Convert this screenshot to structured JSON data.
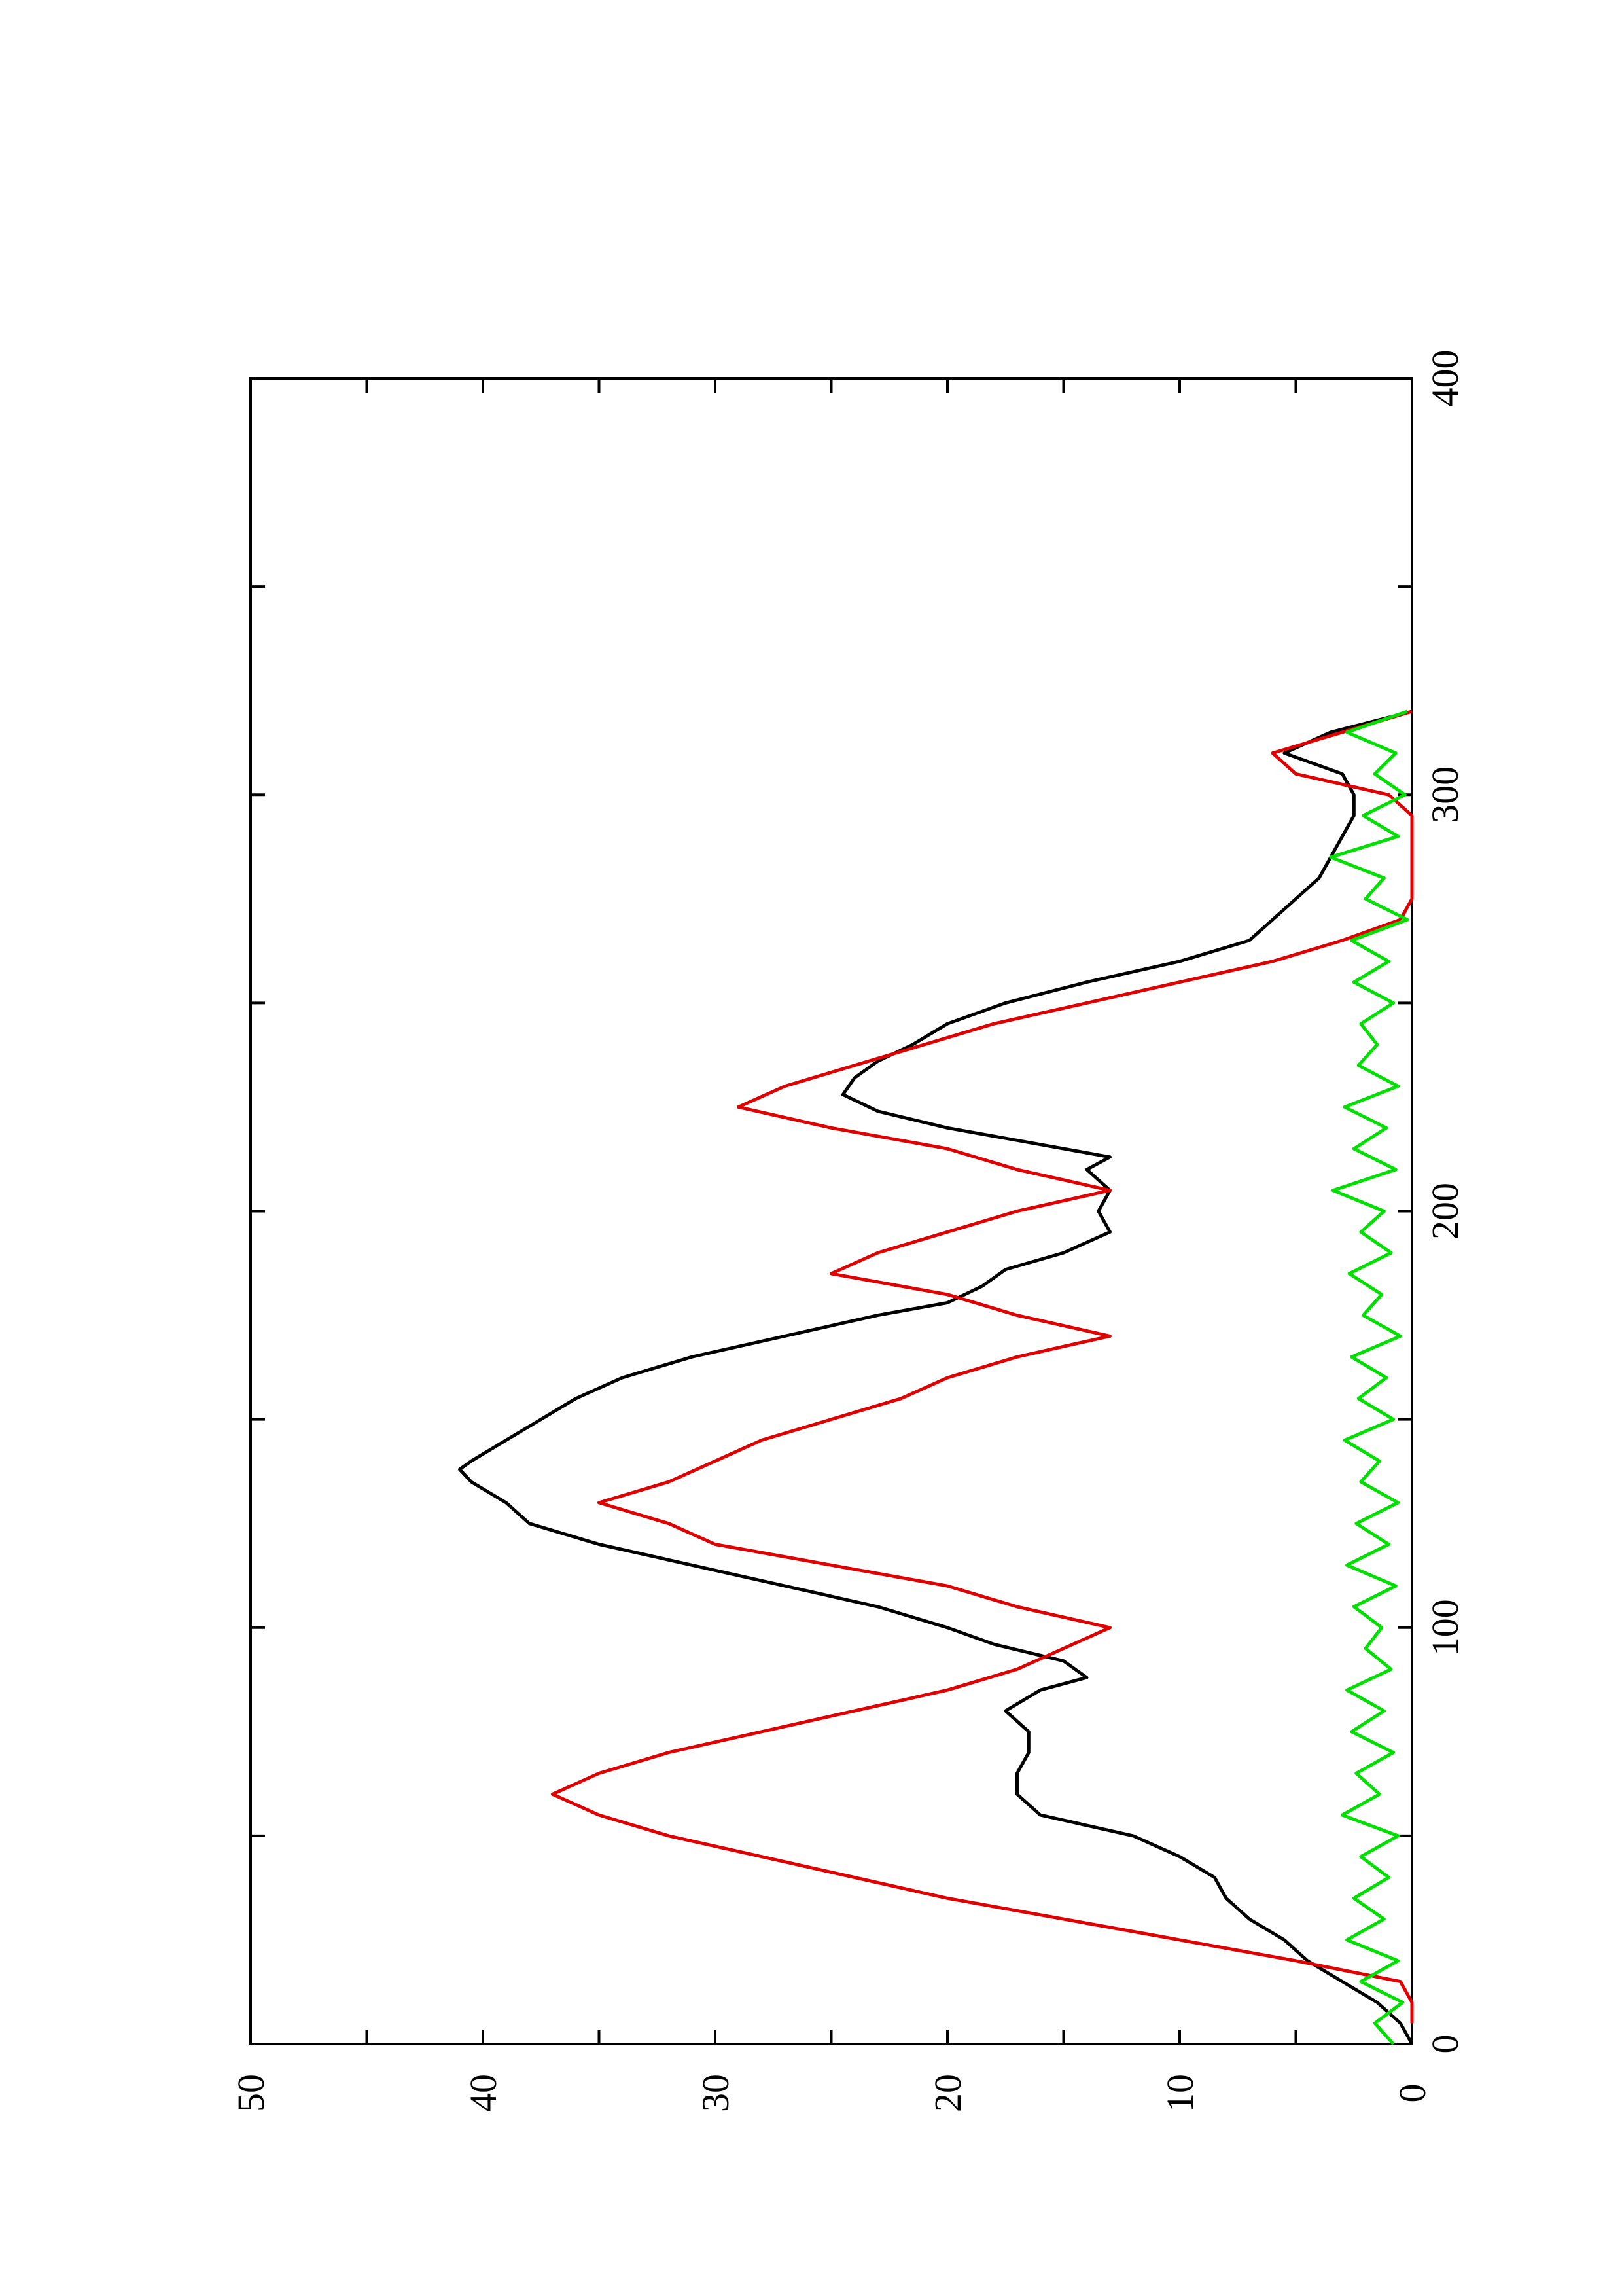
{
  "chart_data": {
    "type": "line",
    "orientation": "rotated-90-counterclockwise",
    "title": "",
    "xlabel": "",
    "ylabel": "",
    "xlim": [
      0,
      400
    ],
    "ylim": [
      0,
      50
    ],
    "x_ticks": [
      "0",
      "100",
      "200",
      "300",
      "400"
    ],
    "y_ticks": [
      "0",
      "10",
      "20",
      "30",
      "40",
      "50"
    ],
    "grid": false,
    "legend": "none",
    "series": [
      {
        "color": "#000000",
        "x": [
          0,
          5,
          10,
          15,
          20,
          25,
          30,
          35,
          40,
          45,
          50,
          55,
          60,
          65,
          70,
          75,
          80,
          85,
          88,
          92,
          96,
          100,
          105,
          110,
          115,
          120,
          125,
          130,
          135,
          138,
          140,
          145,
          150,
          155,
          160,
          165,
          170,
          175,
          178,
          182,
          186,
          190,
          195,
          200,
          205,
          210,
          213,
          216,
          220,
          224,
          228,
          232,
          236,
          240,
          245,
          250,
          255,
          260,
          265,
          270,
          275,
          280,
          285,
          290,
          295,
          300,
          305,
          310,
          315,
          320
        ],
        "y": [
          0,
          0.5,
          1.5,
          3,
          4.5,
          5.5,
          7,
          8,
          8.5,
          10,
          12,
          16,
          17,
          17,
          16.5,
          16.5,
          17.5,
          16,
          14,
          15,
          18,
          20,
          23,
          27,
          31,
          35,
          38,
          39,
          40.5,
          41,
          40.5,
          39,
          37.5,
          36,
          34,
          31,
          27,
          23,
          20,
          18.5,
          17.5,
          15,
          13,
          13.5,
          13,
          14,
          13,
          16,
          20,
          23,
          24.5,
          24,
          23,
          21.5,
          20,
          17.5,
          14,
          10,
          7,
          6,
          5,
          4,
          3.5,
          3,
          2.5,
          2.5,
          3,
          5.5,
          3.5,
          0
        ]
      },
      {
        "color": "#e00000",
        "x": [
          5,
          10,
          15,
          20,
          25,
          30,
          35,
          40,
          45,
          50,
          55,
          60,
          65,
          70,
          75,
          80,
          85,
          90,
          95,
          100,
          105,
          110,
          115,
          120,
          125,
          130,
          135,
          140,
          145,
          150,
          155,
          160,
          165,
          170,
          175,
          180,
          185,
          190,
          195,
          200,
          205,
          210,
          215,
          220,
          225,
          230,
          235,
          240,
          245,
          250,
          255,
          260,
          265,
          270,
          275,
          280,
          285,
          290,
          295,
          300,
          305,
          310,
          315,
          320
        ],
        "y": [
          0,
          0,
          0.5,
          5,
          10,
          15,
          20,
          24,
          28,
          32,
          35,
          37,
          35,
          32,
          28,
          24,
          20,
          17,
          15,
          13,
          17,
          20,
          25,
          30,
          32,
          35,
          32,
          30,
          28,
          25,
          22,
          20,
          17,
          13,
          17,
          20,
          25,
          23,
          20,
          17,
          13,
          17,
          20,
          25,
          29,
          27,
          24,
          21,
          18,
          14,
          10,
          6,
          3,
          0.5,
          0,
          0,
          0,
          0,
          0,
          1,
          5,
          6,
          3,
          0
        ]
      },
      {
        "color": "#00e000",
        "x": [
          0,
          5,
          10,
          15,
          20,
          25,
          30,
          35,
          40,
          45,
          50,
          55,
          60,
          65,
          70,
          75,
          80,
          85,
          90,
          95,
          100,
          105,
          110,
          115,
          120,
          125,
          130,
          135,
          140,
          145,
          150,
          155,
          160,
          165,
          170,
          175,
          180,
          185,
          190,
          195,
          200,
          205,
          210,
          215,
          220,
          225,
          230,
          235,
          240,
          245,
          250,
          255,
          260,
          265,
          270,
          275,
          280,
          285,
          290,
          295,
          300,
          305,
          310,
          315,
          320
        ],
        "y": [
          0.8,
          1.6,
          0.4,
          2.2,
          0.6,
          2.8,
          1.2,
          2.5,
          1.0,
          2.2,
          0.6,
          3.0,
          1.4,
          2.4,
          0.8,
          2.6,
          1.2,
          2.8,
          0.9,
          2.0,
          1.3,
          2.5,
          0.7,
          2.8,
          1.0,
          2.4,
          0.6,
          2.2,
          1.4,
          2.9,
          0.8,
          2.3,
          1.1,
          2.6,
          0.5,
          2.1,
          1.3,
          2.7,
          0.9,
          2.2,
          1.2,
          3.4,
          0.7,
          2.5,
          1.1,
          2.9,
          0.6,
          2.3,
          1.5,
          2.2,
          0.8,
          2.5,
          1.0,
          2.6,
          0.2,
          2.0,
          1.2,
          3.5,
          0.6,
          2.1,
          0.3,
          1.6,
          0.7,
          2.8,
          0.2
        ]
      }
    ]
  }
}
